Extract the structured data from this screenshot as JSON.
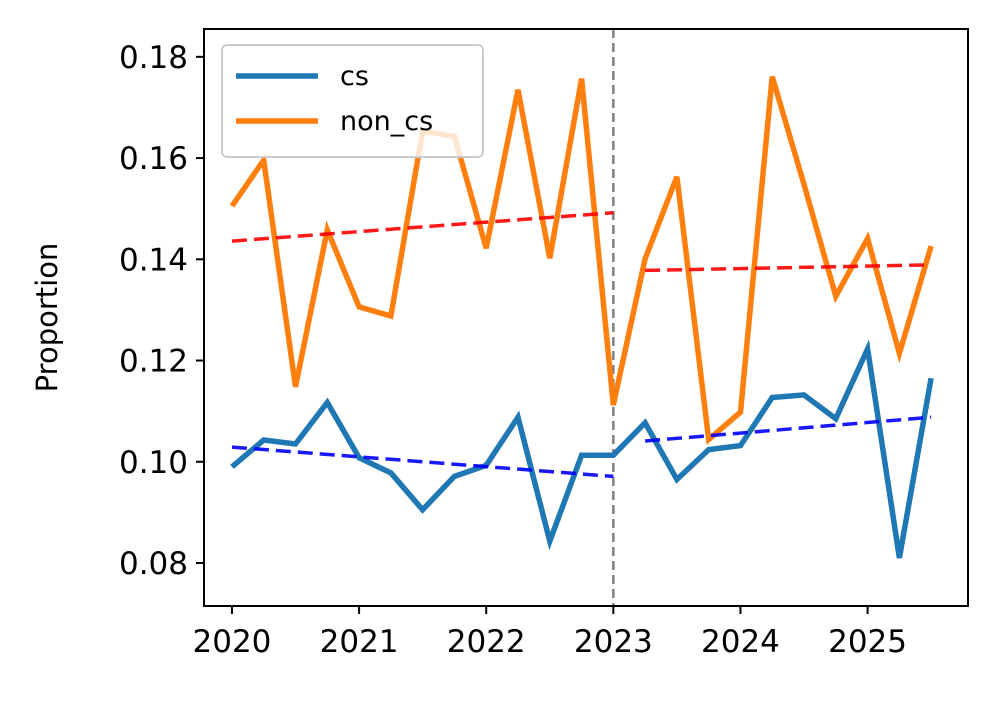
{
  "chart_data": {
    "type": "line",
    "title": "",
    "xlabel": "",
    "ylabel": "Proportion",
    "xlim": [
      2019.78,
      2025.79
    ],
    "ylim": [
      0.0715,
      0.1855
    ],
    "x_ticks": [
      2020,
      2021,
      2022,
      2023,
      2024,
      2025
    ],
    "x_tick_labels": [
      "2020",
      "2021",
      "2022",
      "2023",
      "2024",
      "2025"
    ],
    "y_ticks": [
      0.08,
      0.1,
      0.12,
      0.14,
      0.16,
      0.18
    ],
    "y_tick_labels": [
      "0.08",
      "0.10",
      "0.12",
      "0.14",
      "0.16",
      "0.18"
    ],
    "grid": false,
    "legend_position": "top-left",
    "x": [
      2020.0,
      2020.25,
      2020.5,
      2020.75,
      2021.0,
      2021.25,
      2021.5,
      2021.75,
      2022.0,
      2022.25,
      2022.5,
      2022.75,
      2023.0,
      2023.25,
      2023.5,
      2023.75,
      2024.0,
      2024.25,
      2024.5,
      2024.75,
      2025.0,
      2025.25,
      2025.5
    ],
    "series": [
      {
        "name": "cs",
        "color": "#1f77b4",
        "values": [
          0.099,
          0.1043,
          0.1035,
          0.1117,
          0.1008,
          0.0978,
          0.0905,
          0.0971,
          0.0993,
          0.1088,
          0.0843,
          0.1013,
          0.1013,
          0.1077,
          0.0965,
          0.1024,
          0.1032,
          0.1127,
          0.1132,
          0.1085,
          0.1223,
          0.081,
          0.1165
        ]
      },
      {
        "name": "non_cs",
        "color": "#ff7f0e",
        "values": [
          0.1505,
          0.1596,
          0.1148,
          0.1458,
          0.1306,
          0.1288,
          0.1653,
          0.1643,
          0.1422,
          0.1735,
          0.1402,
          0.1757,
          0.1112,
          0.1401,
          0.1563,
          0.1044,
          0.1098,
          0.1761,
          0.1548,
          0.1327,
          0.1441,
          0.1214,
          0.1426
        ]
      }
    ],
    "trend_lines": [
      {
        "series": "cs",
        "color": "#0000ff",
        "x": [
          2020.0,
          2023.0
        ],
        "y": [
          0.1029,
          0.0971
        ]
      },
      {
        "series": "cs",
        "color": "#0000ff",
        "x": [
          2023.25,
          2025.5
        ],
        "y": [
          0.1041,
          0.1088
        ]
      },
      {
        "series": "non_cs",
        "color": "#ff0000",
        "x": [
          2020.0,
          2023.0
        ],
        "y": [
          0.1436,
          0.1492
        ]
      },
      {
        "series": "non_cs",
        "color": "#ff0000",
        "x": [
          2023.25,
          2025.5
        ],
        "y": [
          0.1378,
          0.1389
        ]
      }
    ],
    "vertical_line": {
      "x": 2023.0,
      "color": "#808080",
      "style": "dashed"
    }
  }
}
